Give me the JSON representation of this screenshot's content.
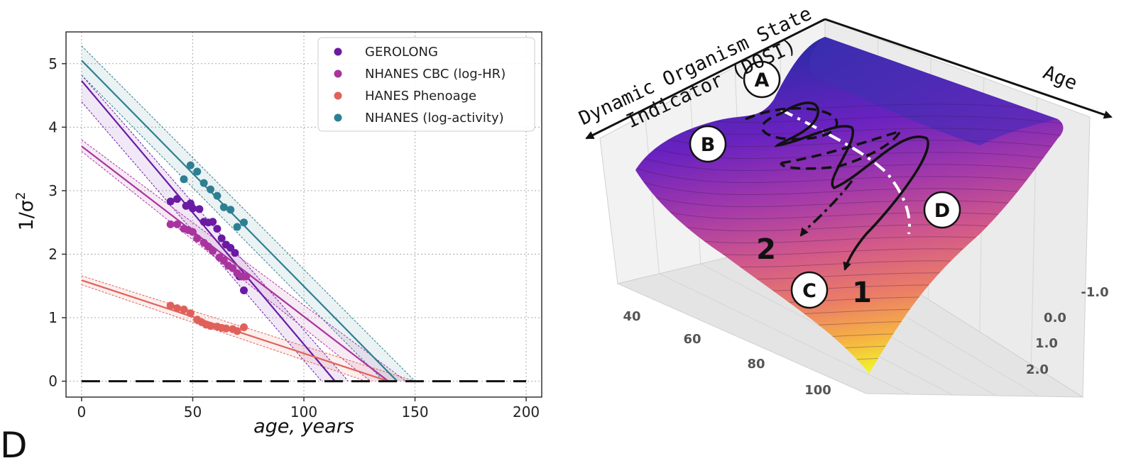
{
  "panel_label": "D",
  "chart_data": [
    {
      "type": "scatter",
      "xlabel": "age, years",
      "ylabel": "1/σ",
      "ylabel_superscript": "2",
      "xlim": [
        -7,
        207
      ],
      "ylim": [
        -0.25,
        5.5
      ],
      "xticks": [
        0,
        50,
        100,
        150,
        200
      ],
      "yticks": [
        0,
        1,
        2,
        3,
        4,
        5
      ],
      "grid": true,
      "legend_position": "top-right",
      "zero_line": true,
      "series": [
        {
          "name": "GEROLONG",
          "color": "#6a1aa3",
          "x": [
            40,
            43,
            47,
            49,
            50,
            53,
            55,
            57,
            59,
            61,
            63,
            65,
            67,
            69,
            71,
            73
          ],
          "y": [
            2.83,
            2.87,
            2.76,
            2.8,
            2.72,
            2.71,
            2.51,
            2.5,
            2.51,
            2.4,
            2.25,
            2.15,
            2.1,
            2.02,
            1.65,
            1.43
          ],
          "fit": {
            "x": [
              0,
              114
            ],
            "y": [
              4.73,
              0.0
            ]
          },
          "band_upper": {
            "x": [
              0,
              120
            ],
            "y": [
              4.82,
              0.0
            ]
          },
          "band_lower": {
            "x": [
              0,
              108
            ],
            "y": [
              4.4,
              0.0
            ]
          }
        },
        {
          "name": "NHANES CBC (log-HR)",
          "color": "#a9349e",
          "x": [
            40,
            43,
            46,
            48,
            50,
            52,
            55,
            57,
            59,
            62,
            64,
            66,
            68,
            70,
            72,
            74
          ],
          "y": [
            2.47,
            2.47,
            2.4,
            2.38,
            2.35,
            2.25,
            2.18,
            2.12,
            2.05,
            1.95,
            1.9,
            1.82,
            1.78,
            1.7,
            1.65,
            1.65
          ],
          "fit": {
            "x": [
              0,
              138
            ],
            "y": [
              3.7,
              0.0
            ]
          },
          "band_upper": {
            "x": [
              0,
              146
            ],
            "y": [
              3.8,
              0.0
            ]
          },
          "band_lower": {
            "x": [
              0,
              130
            ],
            "y": [
              3.62,
              0.0
            ]
          }
        },
        {
          "name": "HANES Phenoage",
          "color": "#e0615a",
          "x": [
            40,
            43,
            46,
            49,
            52,
            54,
            56,
            58,
            61,
            63,
            65,
            68,
            70,
            73
          ],
          "y": [
            1.19,
            1.15,
            1.13,
            1.07,
            0.97,
            0.93,
            0.89,
            0.87,
            0.86,
            0.84,
            0.83,
            0.82,
            0.79,
            0.85
          ],
          "fit": {
            "x": [
              0,
              138
            ],
            "y": [
              1.59,
              0.0
            ]
          },
          "band_upper": {
            "x": [
              0,
              150
            ],
            "y": [
              1.66,
              0.0
            ]
          },
          "band_lower": {
            "x": [
              0,
              128
            ],
            "y": [
              1.52,
              0.0
            ]
          }
        },
        {
          "name": "NHANES (log-activity)",
          "color": "#2e7f92",
          "x": [
            46,
            49,
            52,
            55,
            58,
            61,
            64,
            67,
            70,
            73
          ],
          "y": [
            3.18,
            3.4,
            3.3,
            3.12,
            3.02,
            2.92,
            2.74,
            2.7,
            2.43,
            2.5
          ],
          "fit": {
            "x": [
              0,
              142
            ],
            "y": [
              5.05,
              0.0
            ]
          },
          "band_upper": {
            "x": [
              0,
              150
            ],
            "y": [
              5.28,
              0.0
            ]
          },
          "band_lower": {
            "x": [
              0,
              136
            ],
            "y": [
              4.82,
              0.0
            ]
          }
        }
      ]
    },
    {
      "type": "surface3d",
      "axis_labels": {
        "dosi_line1": "Dynamic Organism State",
        "dosi_line2": "Indicator (DOSI)",
        "age": "Age"
      },
      "age_ticks": [
        "40",
        "60",
        "80",
        "100"
      ],
      "dosi_ticks": [
        "-1.0",
        "0.0",
        "1.0",
        "2.0"
      ],
      "points": [
        {
          "label": "A"
        },
        {
          "label": "B"
        },
        {
          "label": "C"
        },
        {
          "label": "D"
        }
      ],
      "paths": [
        {
          "label": "1"
        },
        {
          "label": "2"
        }
      ],
      "colormap": [
        "#2f2aa8",
        "#6a22c0",
        "#a53aa9",
        "#d1588a",
        "#eb7e66",
        "#f6b244",
        "#f0f22d"
      ]
    }
  ]
}
